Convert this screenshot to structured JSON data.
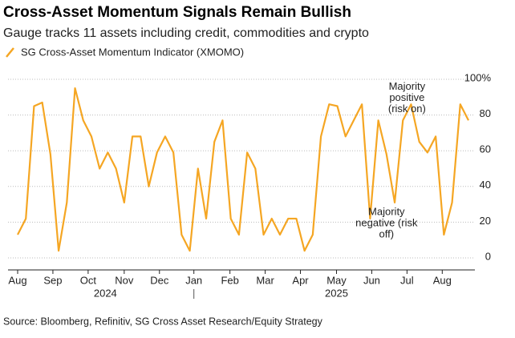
{
  "chart_data": {
    "type": "line",
    "title": "Cross-Asset Momentum Signals Remain Bullish",
    "subtitle": "Gauge tracks 11 assets including credit, commodities and crypto",
    "source": "Source: Bloomberg, Refinitiv, SG Cross Asset Research/Equity Strategy",
    "categories": [
      null,
      null,
      null,
      null,
      null,
      null,
      null,
      null,
      null,
      null,
      null,
      null,
      null,
      null,
      null,
      null,
      null,
      null,
      null,
      null,
      null,
      null,
      null,
      null,
      null,
      null,
      null,
      null,
      null,
      null,
      null,
      null,
      null,
      null,
      null,
      null,
      null,
      null,
      null,
      null,
      null,
      null,
      null,
      null,
      null,
      null,
      null,
      null,
      null,
      null,
      null,
      null,
      null,
      null,
      null,
      null
    ],
    "series": [
      {
        "name": "SG Cross-Asset Momentum Indicator (XMOMO)",
        "color": "#f5a623",
        "values": [
          13,
          22,
          85,
          87,
          58,
          4,
          31,
          95,
          77,
          68,
          50,
          59,
          50,
          31,
          68,
          68,
          40,
          59,
          68,
          59,
          13,
          4,
          50,
          22,
          65,
          77,
          22,
          13,
          59,
          50,
          13,
          22,
          13,
          22,
          22,
          4,
          13,
          68,
          86,
          85,
          68,
          77,
          86,
          22,
          77,
          58,
          31,
          77,
          86,
          65,
          59,
          68,
          13,
          31,
          86,
          77
        ]
      }
    ],
    "xticks": [
      {
        "value": 0,
        "label": "Aug"
      },
      {
        "value": 4.3,
        "label": "Sep"
      },
      {
        "value": 8.6,
        "label": "Oct"
      },
      {
        "value": 13,
        "label": "Nov"
      },
      {
        "value": 17.3,
        "label": "Dec"
      },
      {
        "value": 21.5,
        "label": "Jan"
      },
      {
        "value": 25.9,
        "label": "Feb"
      },
      {
        "value": 30.2,
        "label": "Mar"
      },
      {
        "value": 34.5,
        "label": "Apr"
      },
      {
        "value": 38.9,
        "label": "May"
      },
      {
        "value": 43.2,
        "label": "Jun"
      },
      {
        "value": 47.5,
        "label": "Jul"
      },
      {
        "value": 51.8,
        "label": "Aug"
      }
    ],
    "years": [
      {
        "value": 10.7,
        "label": "2024"
      },
      {
        "value": 38.9,
        "label": "2025"
      }
    ],
    "year_divider": 21.5,
    "ylim": [
      0,
      100
    ],
    "yticks": [
      0,
      20,
      40,
      60,
      80,
      {
        "value": 100,
        "label": "100%"
      }
    ],
    "grid": true,
    "annotations": [
      {
        "lines": [
          "Majority",
          "positive",
          "(risk on)"
        ],
        "x": 47.5,
        "y": 95
      },
      {
        "lines": [
          "Majority",
          "negative (risk",
          "off)"
        ],
        "x": 45,
        "y": 25
      }
    ]
  }
}
